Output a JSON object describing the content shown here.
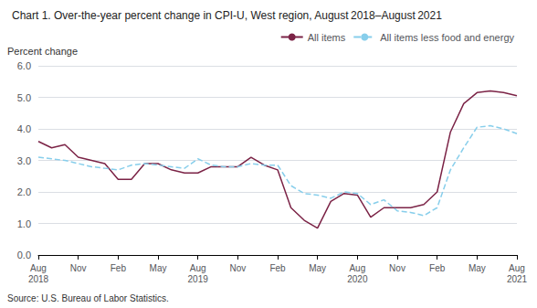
{
  "chart_data": {
    "type": "line",
    "title": "Chart 1. Over-the-year percent change in CPI-U, West region, August 2018–August 2021",
    "ylabel": "Percent change",
    "annotations": [
      "Source: U.S. Bureau of Labor Statistics."
    ],
    "categories": [
      "Aug\n2018",
      null,
      null,
      "Nov",
      null,
      null,
      "Feb",
      null,
      null,
      "May",
      null,
      null,
      "Aug\n2019",
      null,
      null,
      "Nov",
      null,
      null,
      "Feb",
      null,
      null,
      "May",
      null,
      null,
      "Aug\n2020",
      null,
      null,
      "Nov",
      null,
      null,
      "Feb",
      null,
      null,
      "May",
      null,
      null,
      "Aug\n2021"
    ],
    "series": [
      {
        "name": "All items",
        "color": "#7B2346",
        "line_style": "solid",
        "values": [
          3.6,
          3.4,
          3.5,
          3.1,
          3.0,
          2.9,
          2.4,
          2.4,
          2.9,
          2.9,
          2.7,
          2.6,
          2.6,
          2.8,
          2.8,
          2.8,
          3.1,
          2.85,
          2.7,
          1.5,
          1.1,
          0.85,
          1.7,
          1.95,
          1.9,
          1.2,
          1.5,
          1.5,
          1.5,
          1.6,
          2.0,
          3.9,
          4.8,
          5.15,
          5.2,
          5.15,
          5.05
        ]
      },
      {
        "name": "All items less food and energy",
        "color": "#87CEEB",
        "line_style": "dashed",
        "values": [
          3.1,
          3.05,
          3.0,
          2.9,
          2.8,
          2.75,
          2.7,
          2.85,
          2.9,
          2.85,
          2.8,
          2.75,
          3.05,
          2.85,
          2.8,
          2.8,
          2.9,
          2.85,
          2.85,
          2.2,
          1.95,
          1.9,
          1.8,
          2.0,
          1.95,
          1.6,
          1.75,
          1.4,
          1.35,
          1.25,
          1.5,
          2.7,
          3.4,
          4.05,
          4.1,
          4.0,
          3.85
        ]
      }
    ],
    "ylim": [
      0.0,
      6.0
    ],
    "yticks": [
      {
        "value": 0,
        "label": "0.0"
      },
      {
        "value": 1,
        "label": "1.0"
      },
      {
        "value": 2,
        "label": "2.0"
      },
      {
        "value": 3,
        "label": "3.0"
      },
      {
        "value": 4,
        "label": "4.0"
      },
      {
        "value": 5,
        "label": "5.0"
      },
      {
        "value": 6,
        "label": "6.0"
      }
    ],
    "grid": true,
    "legend": "upper right"
  }
}
